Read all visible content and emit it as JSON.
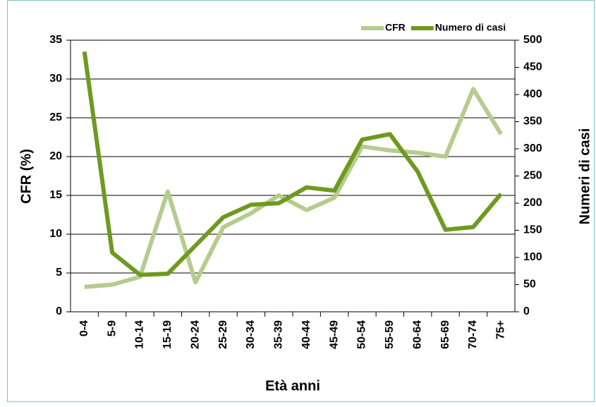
{
  "chart_data": {
    "type": "line",
    "x_label": "Età anni",
    "y_label": "CFR (%)",
    "y2_label": "Numeri di casi",
    "categories": [
      "0-4",
      "5-9",
      "10-14",
      "15-19",
      "20-24",
      "25-29",
      "30-34",
      "35-39",
      "40-44",
      "45-49",
      "50-54",
      "55-59",
      "60-64",
      "65-69",
      "70-74",
      "75+"
    ],
    "series": [
      {
        "name": "CFR",
        "color": "#b5cc8e",
        "values": [
          3.2,
          3.5,
          4.5,
          15.5,
          3.8,
          10.9,
          12.7,
          15.0,
          13.1,
          14.7,
          21.3,
          20.8,
          20.5,
          20.0,
          28.7,
          22.9
        ]
      },
      {
        "name": "Numero di casi",
        "color": "#6e9a1e",
        "axis": "y2",
        "values": [
          479,
          109,
          68,
          70,
          122,
          174,
          197,
          200,
          229,
          223,
          317,
          327,
          258,
          151,
          156,
          217
        ]
      }
    ],
    "ylim": [
      0,
      35
    ],
    "yticks": [
      0,
      5,
      10,
      15,
      20,
      25,
      30,
      35
    ],
    "y2lim": [
      0,
      500
    ],
    "y2ticks": [
      0,
      50,
      100,
      150,
      200,
      250,
      300,
      350,
      400,
      450,
      500
    ],
    "grid": true,
    "legend": "top-right"
  }
}
